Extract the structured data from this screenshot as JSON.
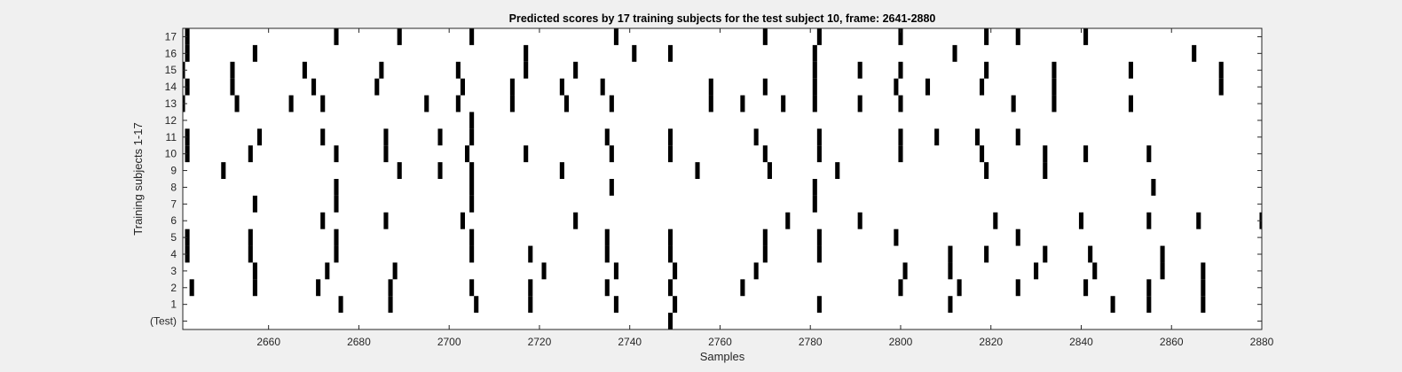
{
  "chart_data": {
    "type": "raster",
    "title": "Predicted scores by 17 training subjects for the test subject 10, frame: 2641-2880",
    "xlabel": "Samples",
    "ylabel": "Training subjects 1-17",
    "xlim": [
      2641,
      2880
    ],
    "x_ticks": [
      2660,
      2680,
      2700,
      2720,
      2740,
      2760,
      2780,
      2800,
      2820,
      2840,
      2860,
      2880
    ],
    "y_tick_labels": [
      "(Test)",
      "1",
      "2",
      "3",
      "4",
      "5",
      "6",
      "7",
      "8",
      "9",
      "10",
      "11",
      "12",
      "13",
      "14",
      "15",
      "16",
      "17"
    ],
    "colors": {
      "marks": "#000000",
      "plot_bg": "#ffffff",
      "figure_bg": "#f0f0f0"
    },
    "rows": [
      {
        "label": "(Test)",
        "events": [
          2749
        ]
      },
      {
        "label": "1",
        "events": [
          2676,
          2687,
          2706,
          2718,
          2737,
          2750,
          2782,
          2811,
          2847,
          2855,
          2867
        ]
      },
      {
        "label": "2",
        "events": [
          2643,
          2657,
          2671,
          2687,
          2705,
          2718,
          2735,
          2749,
          2765,
          2800,
          2813,
          2826,
          2841,
          2855,
          2867
        ]
      },
      {
        "label": "3",
        "events": [
          2657,
          2673,
          2688,
          2721,
          2737,
          2750,
          2768,
          2801,
          2811,
          2830,
          2843,
          2858,
          2867
        ]
      },
      {
        "label": "4",
        "events": [
          2642,
          2656,
          2675,
          2705,
          2718,
          2735,
          2749,
          2770,
          2782,
          2811,
          2819,
          2832,
          2842,
          2858
        ]
      },
      {
        "label": "5",
        "events": [
          2642,
          2656,
          2675,
          2705,
          2735,
          2749,
          2770,
          2782,
          2799,
          2826
        ]
      },
      {
        "label": "6",
        "events": [
          2672,
          2686,
          2703,
          2728,
          2775,
          2791,
          2821,
          2840,
          2855,
          2866,
          2880
        ]
      },
      {
        "label": "7",
        "events": [
          2657,
          2675,
          2705,
          2781
        ]
      },
      {
        "label": "8",
        "events": [
          2675,
          2705,
          2736,
          2781,
          2856
        ]
      },
      {
        "label": "9",
        "events": [
          2650,
          2689,
          2698,
          2705,
          2725,
          2755,
          2771,
          2786,
          2819,
          2832
        ]
      },
      {
        "label": "10",
        "events": [
          2642,
          2656,
          2675,
          2686,
          2704,
          2717,
          2736,
          2749,
          2770,
          2782,
          2800,
          2818,
          2832,
          2841,
          2855
        ]
      },
      {
        "label": "11",
        "events": [
          2642,
          2658,
          2672,
          2686,
          2698,
          2705,
          2735,
          2749,
          2768,
          2782,
          2800,
          2808,
          2817,
          2826
        ]
      },
      {
        "label": "12",
        "events": [
          2705
        ]
      },
      {
        "label": "13",
        "events": [
          2641,
          2653,
          2665,
          2672,
          2695,
          2702,
          2714,
          2726,
          2736,
          2758,
          2765,
          2774,
          2781,
          2791,
          2800,
          2825,
          2834,
          2851
        ]
      },
      {
        "label": "14",
        "events": [
          2642,
          2652,
          2670,
          2684,
          2703,
          2714,
          2725,
          2734,
          2758,
          2770,
          2781,
          2799,
          2806,
          2818,
          2834,
          2871
        ]
      },
      {
        "label": "15",
        "events": [
          2641,
          2652,
          2668,
          2685,
          2702,
          2717,
          2728,
          2781,
          2791,
          2800,
          2819,
          2834,
          2851,
          2871
        ]
      },
      {
        "label": "16",
        "events": [
          2642,
          2657,
          2717,
          2741,
          2749,
          2781,
          2812,
          2865
        ]
      },
      {
        "label": "17",
        "events": [
          2642,
          2675,
          2689,
          2705,
          2737,
          2770,
          2782,
          2800,
          2819,
          2826,
          2841
        ]
      }
    ]
  }
}
